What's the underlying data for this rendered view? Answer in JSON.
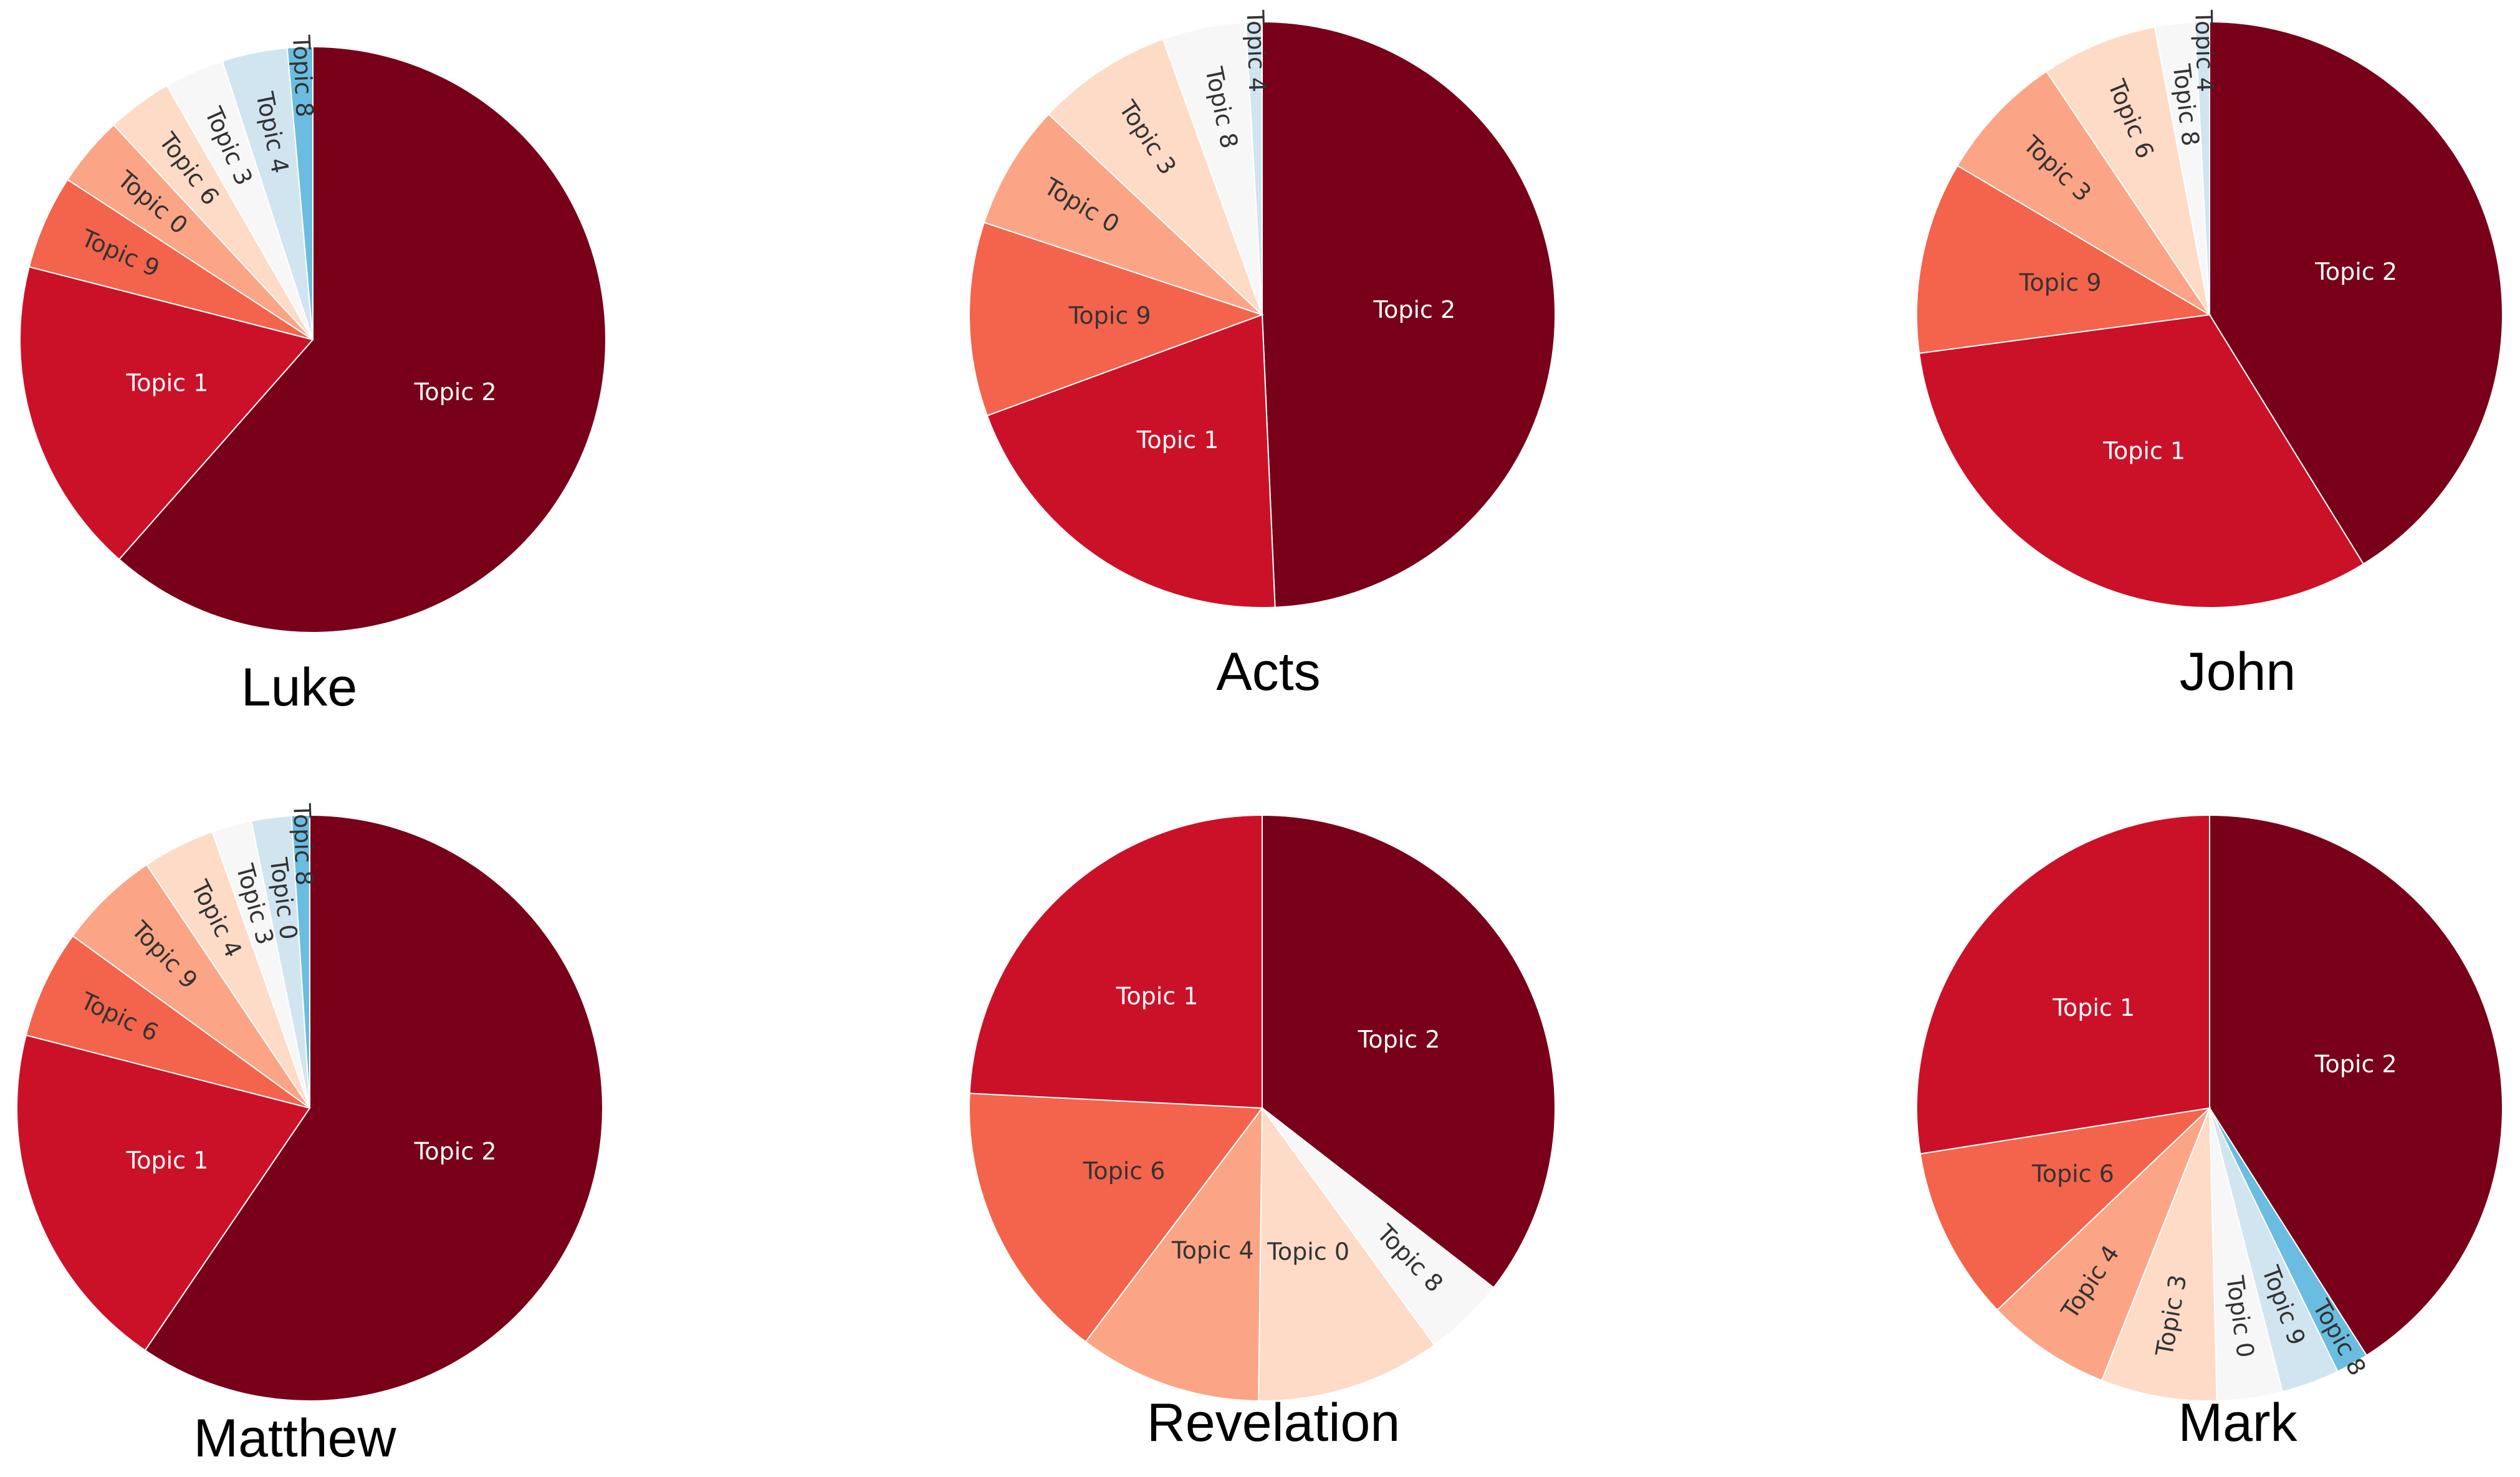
{
  "chart_data": [
    {
      "type": "pie",
      "title": "Luke",
      "slices": [
        {
          "label": "Topic 2",
          "value": 61.5,
          "color": "#780019"
        },
        {
          "label": "Topic 1",
          "value": 17.5,
          "color": "#cb1128"
        },
        {
          "label": "Topic 9",
          "value": 5.2,
          "color": "#f4634b"
        },
        {
          "label": "Topic 0",
          "value": 3.9,
          "color": "#fca486"
        },
        {
          "label": "Topic 6",
          "value": 3.6,
          "color": "#fedbc7"
        },
        {
          "label": "Topic 3",
          "value": 3.3,
          "color": "#f7f7f7"
        },
        {
          "label": "Topic 4",
          "value": 3.6,
          "color": "#d1e5f0"
        },
        {
          "label": "Topic 8",
          "value": 1.4,
          "color": "#6abde0"
        }
      ]
    },
    {
      "type": "pie",
      "title": "Acts",
      "slices": [
        {
          "label": "Topic 2",
          "value": 49.3,
          "color": "#780019"
        },
        {
          "label": "Topic 1",
          "value": 20.1,
          "color": "#cb1128"
        },
        {
          "label": "Topic 9",
          "value": 10.7,
          "color": "#f4634b"
        },
        {
          "label": "Topic 0",
          "value": 6.9,
          "color": "#fca486"
        },
        {
          "label": "Topic 3",
          "value": 7.5,
          "color": "#fedbc7"
        },
        {
          "label": "Topic 8",
          "value": 4.6,
          "color": "#f7f7f7"
        },
        {
          "label": "Topic 4",
          "value": 0.9,
          "color": "#d1e5f0"
        }
      ]
    },
    {
      "type": "pie",
      "title": "John",
      "slices": [
        {
          "label": "Topic 2",
          "value": 41.2,
          "color": "#780019"
        },
        {
          "label": "Topic 1",
          "value": 31.7,
          "color": "#cb1128"
        },
        {
          "label": "Topic 9",
          "value": 10.6,
          "color": "#f4634b"
        },
        {
          "label": "Topic 3",
          "value": 7.1,
          "color": "#fca486"
        },
        {
          "label": "Topic 6",
          "value": 6.4,
          "color": "#fedbc7"
        },
        {
          "label": "Topic 8",
          "value": 2.2,
          "color": "#f7f7f7"
        },
        {
          "label": "Topic 4",
          "value": 0.8,
          "color": "#d1e5f0"
        }
      ]
    },
    {
      "type": "pie",
      "title": "Matthew",
      "slices": [
        {
          "label": "Topic 2",
          "value": 59.5,
          "color": "#780019"
        },
        {
          "label": "Topic 1",
          "value": 19.5,
          "color": "#cb1128"
        },
        {
          "label": "Topic 6",
          "value": 6.0,
          "color": "#f4634b"
        },
        {
          "label": "Topic 9",
          "value": 5.6,
          "color": "#fca486"
        },
        {
          "label": "Topic 4",
          "value": 4.0,
          "color": "#fedbc7"
        },
        {
          "label": "Topic 3",
          "value": 2.2,
          "color": "#f7f7f7"
        },
        {
          "label": "Topic 0",
          "value": 2.2,
          "color": "#d1e5f0"
        },
        {
          "label": "Topic 8",
          "value": 1.0,
          "color": "#6abde0"
        }
      ]
    },
    {
      "type": "pie",
      "title": "Revelation",
      "slices": [
        {
          "label": "Topic 2",
          "value": 35.5,
          "color": "#780019"
        },
        {
          "label": "Topic 8",
          "value": 4.5,
          "color": "#f7f7f7"
        },
        {
          "label": "Topic 0",
          "value": 10.2,
          "color": "#fedbc7"
        },
        {
          "label": "Topic 4",
          "value": 10.1,
          "color": "#fca486"
        },
        {
          "label": "Topic 6",
          "value": 15.5,
          "color": "#f4634b"
        },
        {
          "label": "Topic 1",
          "value": 24.2,
          "color": "#cb1128"
        }
      ]
    },
    {
      "type": "pie",
      "title": "Mark",
      "slices": [
        {
          "label": "Topic 2",
          "value": 41.0,
          "color": "#780019"
        },
        {
          "label": "Topic 8",
          "value": 1.8,
          "color": "#6abde0"
        },
        {
          "label": "Topic 9",
          "value": 3.2,
          "color": "#d1e5f0"
        },
        {
          "label": "Topic 0",
          "value": 3.6,
          "color": "#f7f7f7"
        },
        {
          "label": "Topic 3",
          "value": 6.4,
          "color": "#fedbc7"
        },
        {
          "label": "Topic 4",
          "value": 6.9,
          "color": "#fca486"
        },
        {
          "label": "Topic 6",
          "value": 9.6,
          "color": "#f4634b"
        },
        {
          "label": "Topic 1",
          "value": 27.5,
          "color": "#cb1128"
        }
      ]
    }
  ]
}
